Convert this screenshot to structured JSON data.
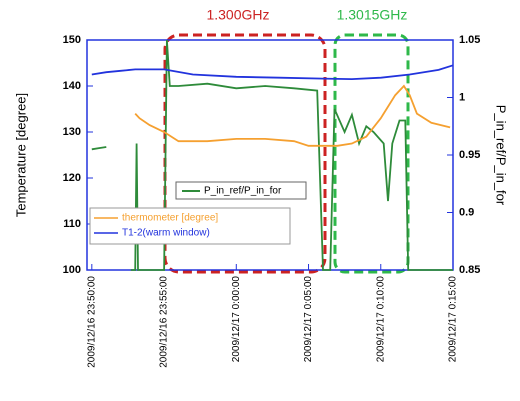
{
  "chart_data": {
    "type": "line",
    "annotations": [
      {
        "text": "1.300GHz",
        "color": "#cc2222"
      },
      {
        "text": "1.3015GHz",
        "color": "#2eb84a"
      }
    ],
    "ylabel": "Temperature [degree]",
    "y2label": "P_in_ref/P_in_for",
    "xlim": [
      "2009/12/16 23:49:40",
      "2009/12/17 0:15:00"
    ],
    "xticks": [
      "2009/12/16 23:50:00",
      "2009/12/16 23:55:00",
      "2009/12/17 0:00:00",
      "2009/12/17 0:05:00",
      "2009/12/17 0:10:00",
      "2009/12/17 0:15:00"
    ],
    "ylim": [
      100,
      150
    ],
    "yticks": [
      100,
      110,
      120,
      130,
      140,
      150
    ],
    "y2lim": [
      0.85,
      1.05
    ],
    "y2ticks": [
      0.85,
      0.9,
      0.95,
      1,
      1.05
    ],
    "series": [
      {
        "name": "P_in_ref/P_in_for",
        "color": "#2e8b3a",
        "axis": "y2",
        "x": [
          "2009/12/16 23:50:00",
          "2009/12/16 23:50:30",
          "2009/12/16 23:51:00",
          "2009/12/16 23:51:30",
          "2009/12/16 23:52:42",
          "2009/12/16 23:53:00",
          "2009/12/16 23:53:06",
          "2009/12/16 23:53:12",
          "2009/12/16 23:55:00",
          "2009/12/16 23:55:12",
          "2009/12/16 23:55:24",
          "2009/12/16 23:56:00",
          "2009/12/16 23:58:00",
          "2009/12/17 0:00:00",
          "2009/12/17 0:02:00",
          "2009/12/17 0:04:00",
          "2009/12/17 0:05:36",
          "2009/12/17 0:06:00",
          "2009/12/17 0:06:30",
          "2009/12/17 0:06:48",
          "2009/12/17 0:07:30",
          "2009/12/17 0:08:00",
          "2009/12/17 0:08:30",
          "2009/12/17 0:09:00",
          "2009/12/17 0:09:30",
          "2009/12/17 0:10:12",
          "2009/12/17 0:10:30",
          "2009/12/17 0:10:48",
          "2009/12/17 0:11:18",
          "2009/12/17 0:11:42",
          "2009/12/17 0:11:54",
          "2009/12/17 0:15:00"
        ],
        "values": [
          0.955,
          0.956,
          0.957,
          null,
          0.85,
          0.85,
          0.96,
          0.85,
          0.85,
          1.05,
          1.01,
          1.01,
          1.012,
          1.008,
          1.01,
          1.008,
          1.006,
          0.85,
          0.85,
          0.99,
          0.97,
          0.985,
          0.96,
          0.975,
          0.97,
          0.96,
          0.91,
          0.96,
          0.98,
          0.98,
          0.85,
          0.85
        ]
      },
      {
        "name": "thermometer [degree]",
        "color": "#f5a030",
        "x": [
          "2009/12/16 23:53:00",
          "2009/12/16 23:53:18",
          "2009/12/16 23:54:00",
          "2009/12/16 23:55:00",
          "2009/12/16 23:56:00",
          "2009/12/16 23:58:00",
          "2009/12/17 0:00:00",
          "2009/12/17 0:02:00",
          "2009/12/17 0:04:00",
          "2009/12/17 0:05:00",
          "2009/12/17 0:07:00",
          "2009/12/17 0:08:00",
          "2009/12/17 0:09:00",
          "2009/12/17 0:10:00",
          "2009/12/17 0:11:00",
          "2009/12/17 0:11:36",
          "2009/12/17 0:12:00",
          "2009/12/17 0:12:30",
          "2009/12/17 0:13:30",
          "2009/12/17 0:14:48"
        ],
        "values": [
          134,
          133,
          131.5,
          130,
          128,
          128,
          128.5,
          128.5,
          128,
          127,
          127,
          127.5,
          129,
          133,
          138,
          140,
          138,
          134,
          132,
          131
        ]
      },
      {
        "name": "T1-2(warm window)",
        "color": "#2233dd",
        "x": [
          "2009/12/16 23:50:00",
          "2009/12/16 23:51:00",
          "2009/12/16 23:52:00",
          "2009/12/16 23:53:00",
          "2009/12/16 23:55:00",
          "2009/12/16 23:57:00",
          "2009/12/17 0:00:00",
          "2009/12/17 0:03:00",
          "2009/12/17 0:06:00",
          "2009/12/17 0:08:00",
          "2009/12/17 0:10:00",
          "2009/12/17 0:12:00",
          "2009/12/17 0:14:00",
          "2009/12/17 0:15:00"
        ],
        "values": [
          142.5,
          143,
          143.3,
          143.6,
          143.6,
          142.5,
          142,
          141.8,
          141.6,
          141.5,
          141.8,
          142.5,
          143.5,
          144.5
        ]
      }
    ]
  }
}
